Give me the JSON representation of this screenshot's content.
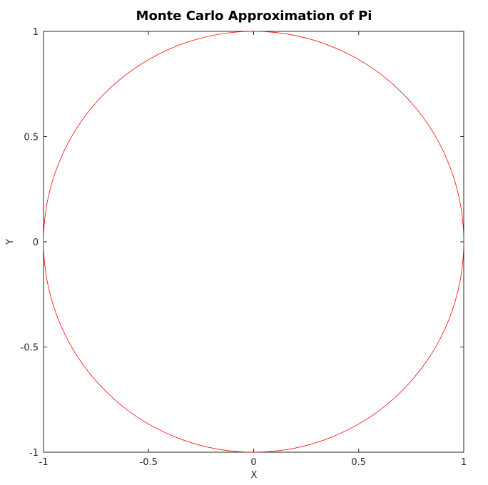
{
  "chart_data": {
    "type": "line",
    "title": "Monte Carlo Approximation of Pi",
    "xlabel": "X",
    "ylabel": "Y",
    "xlim": [
      -1,
      1
    ],
    "ylim": [
      -1,
      1
    ],
    "x_ticks": [
      -1,
      -0.5,
      0,
      0.5,
      1
    ],
    "x_tick_labels": [
      "-1",
      "-0.5",
      "0",
      "0.5",
      "1"
    ],
    "y_ticks": [
      -1,
      -0.5,
      0,
      0.5,
      1
    ],
    "y_tick_labels": [
      "-1",
      "-0.5",
      "0",
      "0.5",
      "1"
    ],
    "grid": false,
    "series": [
      {
        "shape": "circle",
        "center": [
          0,
          0
        ],
        "radius": 1,
        "color": "#ff0000"
      }
    ]
  }
}
